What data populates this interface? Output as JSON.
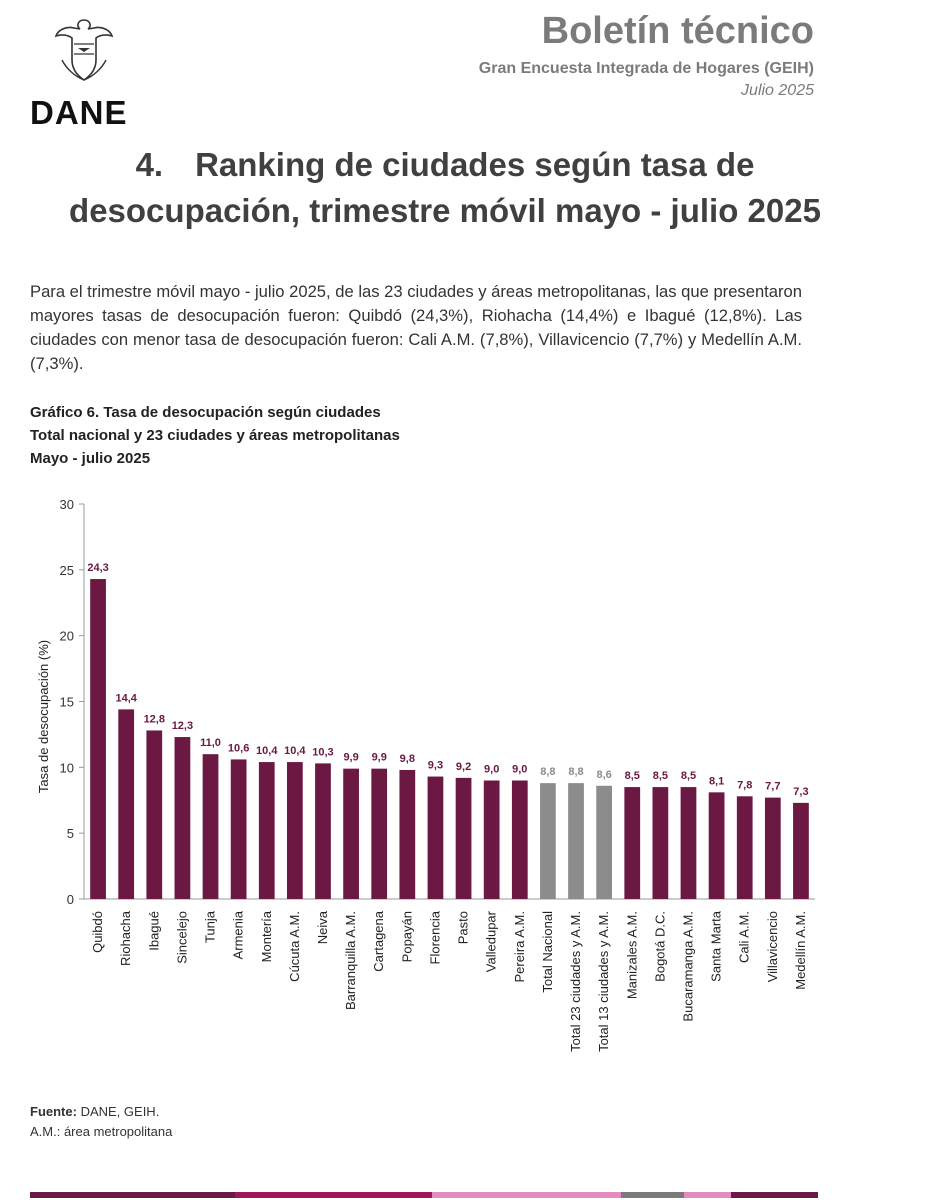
{
  "logo": {
    "name": "DANE"
  },
  "header": {
    "title": "Boletín técnico",
    "subtitle": "Gran Encuesta Integrada de Hogares (GEIH)",
    "date": "Julio 2025"
  },
  "section": {
    "number": "4.",
    "title_line1": "Ranking de ciudades según tasa de",
    "title_line2": "desocupación, trimestre móvil mayo - julio 2025"
  },
  "intro": "Para el trimestre móvil mayo - julio 2025, de las 23 ciudades y áreas metropolitanas, las que presentaron mayores tasas de desocupación fueron: Quibdó (24,3%), Riohacha (14,4%) e Ibagué (12,8%). Las ciudades con menor tasa de desocupación fueron: Cali A.M. (7,8%), Villavicencio (7,7%) y Medellín A.M. (7,3%).",
  "chart_header": {
    "line1": "Gráfico 6. Tasa de desocupación según ciudades",
    "line2": "Total nacional y 23 ciudades y áreas metropolitanas",
    "line3": "Mayo - julio 2025"
  },
  "chart_data": {
    "type": "bar",
    "title": "Gráfico 6. Tasa de desocupación según ciudades",
    "xlabel": "",
    "ylabel": "Tasa de desocupación (%)",
    "ylim": [
      0,
      30
    ],
    "yticks": [
      0,
      5,
      10,
      15,
      20,
      25,
      30
    ],
    "grid": false,
    "categories": [
      "Quibdó",
      "Riohacha",
      "Ibagué",
      "Sincelejo",
      "Tunja",
      "Armenia",
      "Montería",
      "Cúcuta A.M.",
      "Neiva",
      "Barranquilla A.M.",
      "Cartagena",
      "Popayán",
      "Florencia",
      "Pasto",
      "Valledupar",
      "Pereira A.M.",
      "Total Nacional",
      "Total 23 ciudades y A.M.",
      "Total 13 ciudades y A.M.",
      "Manizales A.M.",
      "Bogotá D.C.",
      "Bucaramanga A.M.",
      "Santa Marta",
      "Cali A.M.",
      "Villavicencio",
      "Medellín A.M."
    ],
    "values": [
      24.3,
      14.4,
      12.8,
      12.3,
      11.0,
      10.6,
      10.4,
      10.4,
      10.3,
      9.9,
      9.9,
      9.8,
      9.3,
      9.2,
      9.0,
      9.0,
      8.8,
      8.8,
      8.6,
      8.5,
      8.5,
      8.5,
      8.1,
      7.8,
      7.7,
      7.3
    ],
    "labels": [
      "24,3",
      "14,4",
      "12,8",
      "12,3",
      "11,0",
      "10,6",
      "10,4",
      "10,4",
      "10,3",
      "9,9",
      "9,9",
      "9,8",
      "9,3",
      "9,2",
      "9,0",
      "9,0",
      "8,8",
      "8,8",
      "8,6",
      "8,5",
      "8,5",
      "8,5",
      "8,1",
      "7,8",
      "7,7",
      "7,3"
    ],
    "highlight_categories": [
      "Total Nacional",
      "Total 23 ciudades y A.M.",
      "Total 13 ciudades y A.M."
    ],
    "colors": {
      "city": "#6b1842",
      "total": "#8c8c8c",
      "city_label": "#6b1842",
      "total_label": "#8c8c8c"
    }
  },
  "source": {
    "label": "Fuente:",
    "text": " DANE, GEIH.",
    "note": "A.M.: área metropolitana"
  },
  "footer_colors": [
    "#6b1842",
    "#a0165a",
    "#e58cbf",
    "#7a7a7a",
    "#e58cbf",
    "#6b1842"
  ]
}
